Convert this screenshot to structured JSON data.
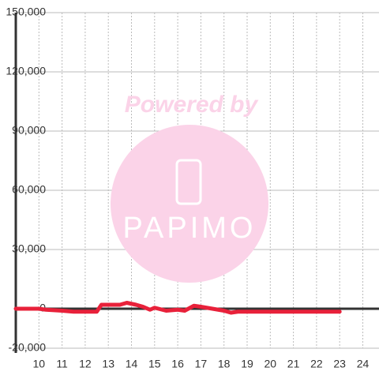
{
  "chart_data": {
    "type": "line",
    "watermark": {
      "text": "Powered by",
      "logo": "PAPIMO"
    },
    "x": [
      9,
      10,
      10.3,
      11,
      11.5,
      12,
      12.5,
      12.7,
      13,
      13.5,
      13.8,
      14.2,
      14.5,
      14.8,
      15,
      15.5,
      16,
      16.3,
      16.7,
      17,
      17.5,
      18,
      18.3,
      18.6,
      19,
      20,
      21,
      22,
      23
    ],
    "series": [
      {
        "color": "#e8213a",
        "values": [
          0,
          0,
          -500,
          -1000,
          -1500,
          -1500,
          -1500,
          2000,
          2000,
          2000,
          3000,
          2000,
          1000,
          -500,
          500,
          -1000,
          -500,
          -1000,
          1500,
          1000,
          0,
          -1000,
          -2000,
          -1500,
          -1500,
          -1500,
          -1500,
          -1500,
          -1500
        ]
      }
    ],
    "xlim": [
      9,
      24.7
    ],
    "xticks": [
      10,
      11,
      12,
      13,
      14,
      15,
      16,
      17,
      18,
      19,
      20,
      21,
      22,
      23,
      24
    ],
    "ylim": [
      -20000,
      150000
    ],
    "yticks": [
      {
        "value": -20000,
        "label": "-20,000"
      },
      0,
      {
        "value": 30000,
        "label": "30,000"
      },
      {
        "value": 60000,
        "label": "60,000"
      },
      {
        "value": 90000,
        "label": "90,000"
      },
      {
        "value": 120000,
        "label": "120,000"
      },
      {
        "value": 150000,
        "label": "150,000"
      }
    ],
    "grid": true
  }
}
